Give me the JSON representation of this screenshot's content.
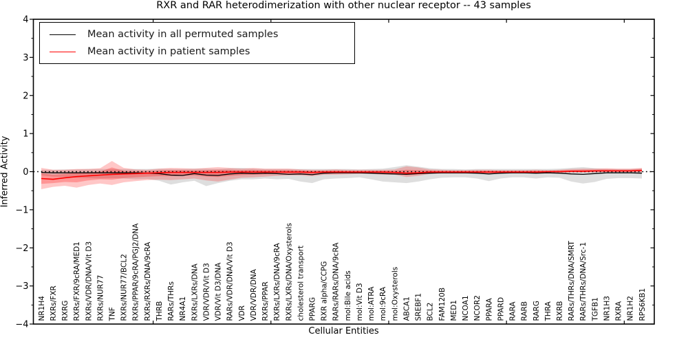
{
  "figure": {
    "background": "#ffffff"
  },
  "chart_data": {
    "type": "line",
    "title": "RXR and RAR heterodimerization with other nuclear receptor -- 43 samples",
    "xlabel": "Cellular Entities",
    "ylabel": "Inferred Activity",
    "ylim": [
      -4,
      4
    ],
    "ytick_values": [
      4,
      3,
      2,
      1,
      0,
      -1,
      -2,
      -3,
      -4
    ],
    "ytick_labels": [
      "4",
      "3",
      "2",
      "1",
      "0",
      "−1",
      "−2",
      "−3",
      "−4"
    ],
    "x_major_ticks": [
      10,
      20,
      30,
      40,
      50
    ],
    "grid": false,
    "legend_position": "upper left",
    "zero_line": {
      "value": 0,
      "style": "dotted",
      "color": "#000000"
    },
    "categories": [
      "NR1H4",
      "RXRs/FXR",
      "RXRG",
      "RXRs/FXR/9cRA/MED1",
      "RXRs/VDR/DNA/Vit D3",
      "RXRs/NUR77",
      "TNF",
      "RXRs/NUR77/BCL2",
      "RXRs/PPAR/9cRA/PGJ2/DNA",
      "RXRs/RXRs/DNA/9cRA",
      "THRB",
      "RARs/THRs",
      "NR4A1",
      "RXRs/LXRs/DNA",
      "VDR/VDR/Vit D3",
      "VDR/Vit D3/DNA",
      "RARs/VDR/DNA/Vit D3",
      "VDR",
      "VDR/VDR/DNA",
      "RXRs/PPAR",
      "RXRs/LXRs/DNA/9cRA",
      "RXRs/LXRs/DNA/Oxysterols",
      "cholesterol transport",
      "PPARG",
      "RXR alpha/CCPG",
      "RARs/RARs/DNA/9cRA",
      "mol:Bile acids",
      "mol:Vit D3",
      "mol:ATRA",
      "mol:9cRA",
      "mol:Oxysterols",
      "ABCA1",
      "SREBF1",
      "BCL2",
      "FAM120B",
      "MED1",
      "NCOA1",
      "NCOR2",
      "PPARA",
      "PPARD",
      "RARA",
      "RARB",
      "RARG",
      "THRA",
      "RXRB",
      "RARs/THRs/DNA/SMRT",
      "RARs/THRs/DNA/Src-1",
      "TGFB1",
      "NR1H3",
      "RXRA",
      "NR1H2",
      "RPS6KB1"
    ],
    "series": [
      {
        "name": "Mean activity in all permuted samples",
        "color": "#000000",
        "band_color": "rgba(0,0,0,0.13)",
        "values": [
          -0.02,
          -0.03,
          -0.03,
          -0.03,
          -0.03,
          -0.03,
          -0.03,
          -0.03,
          -0.03,
          -0.04,
          -0.05,
          -0.09,
          -0.1,
          -0.05,
          -0.09,
          -0.1,
          -0.06,
          -0.04,
          -0.05,
          -0.04,
          -0.05,
          -0.07,
          -0.06,
          -0.08,
          -0.04,
          -0.03,
          -0.03,
          -0.03,
          -0.04,
          -0.05,
          -0.06,
          -0.07,
          -0.05,
          -0.04,
          -0.03,
          -0.03,
          -0.03,
          -0.04,
          -0.06,
          -0.04,
          -0.03,
          -0.03,
          -0.04,
          -0.03,
          -0.04,
          -0.06,
          -0.07,
          -0.05,
          -0.03,
          -0.03,
          -0.03,
          -0.04
        ],
        "band_upper": [
          0.05,
          0.05,
          0.06,
          0.06,
          0.07,
          0.07,
          0.07,
          0.07,
          0.07,
          0.07,
          0.08,
          0.07,
          0.07,
          0.08,
          0.08,
          0.07,
          0.09,
          0.1,
          0.08,
          0.07,
          0.07,
          0.07,
          0.07,
          0.07,
          0.07,
          0.07,
          0.07,
          0.06,
          0.07,
          0.08,
          0.12,
          0.17,
          0.13,
          0.09,
          0.07,
          0.07,
          0.06,
          0.07,
          0.07,
          0.07,
          0.07,
          0.07,
          0.07,
          0.07,
          0.08,
          0.1,
          0.12,
          0.09,
          0.07,
          0.07,
          0.07,
          0.08
        ],
        "band_lower": [
          -0.1,
          -0.13,
          -0.14,
          -0.16,
          -0.17,
          -0.18,
          -0.17,
          -0.18,
          -0.2,
          -0.19,
          -0.24,
          -0.34,
          -0.28,
          -0.24,
          -0.38,
          -0.3,
          -0.24,
          -0.2,
          -0.2,
          -0.18,
          -0.2,
          -0.19,
          -0.26,
          -0.3,
          -0.2,
          -0.18,
          -0.17,
          -0.15,
          -0.2,
          -0.26,
          -0.28,
          -0.3,
          -0.26,
          -0.2,
          -0.16,
          -0.15,
          -0.15,
          -0.18,
          -0.25,
          -0.18,
          -0.15,
          -0.15,
          -0.18,
          -0.15,
          -0.16,
          -0.26,
          -0.31,
          -0.27,
          -0.19,
          -0.17,
          -0.17,
          -0.18
        ]
      },
      {
        "name": "Mean activity in patient samples",
        "color": "#ff0000",
        "band_color": "rgba(255,0,0,0.22)",
        "inner_band_color": "rgba(255,0,0,0.25)",
        "values": [
          -0.18,
          -0.2,
          -0.16,
          -0.13,
          -0.11,
          -0.09,
          -0.07,
          -0.06,
          -0.05,
          -0.04,
          -0.03,
          -0.02,
          -0.02,
          -0.02,
          -0.02,
          -0.02,
          -0.01,
          -0.01,
          -0.01,
          -0.01,
          -0.01,
          -0.01,
          -0.01,
          -0.02,
          -0.01,
          -0.01,
          -0.01,
          -0.01,
          -0.01,
          -0.01,
          -0.02,
          -0.04,
          -0.03,
          -0.01,
          -0.01,
          -0.01,
          -0.01,
          -0.01,
          -0.01,
          -0.01,
          -0.01,
          -0.01,
          -0.01,
          0.0,
          0.0,
          0.01,
          0.01,
          0.02,
          0.02,
          0.02,
          0.02,
          0.03
        ],
        "band_upper": [
          0.1,
          0.05,
          0.05,
          0.07,
          0.07,
          0.09,
          0.28,
          0.1,
          0.06,
          0.05,
          0.08,
          0.1,
          0.09,
          0.08,
          0.1,
          0.12,
          0.1,
          0.08,
          0.1,
          0.08,
          0.08,
          0.08,
          0.06,
          0.05,
          0.05,
          0.06,
          0.05,
          0.05,
          0.05,
          0.05,
          0.06,
          0.14,
          0.11,
          0.06,
          0.05,
          0.04,
          0.04,
          0.05,
          0.05,
          0.04,
          0.04,
          0.04,
          0.05,
          0.04,
          0.05,
          0.07,
          0.08,
          0.08,
          0.09,
          0.08,
          0.08,
          0.1
        ],
        "band_lower": [
          -0.46,
          -0.4,
          -0.37,
          -0.42,
          -0.35,
          -0.31,
          -0.35,
          -0.28,
          -0.25,
          -0.22,
          -0.21,
          -0.22,
          -0.2,
          -0.18,
          -0.23,
          -0.26,
          -0.21,
          -0.16,
          -0.15,
          -0.13,
          -0.11,
          -0.1,
          -0.1,
          -0.12,
          -0.08,
          -0.08,
          -0.07,
          -0.06,
          -0.06,
          -0.08,
          -0.08,
          -0.14,
          -0.11,
          -0.06,
          -0.05,
          -0.05,
          -0.05,
          -0.05,
          -0.06,
          -0.05,
          -0.04,
          -0.04,
          -0.05,
          -0.04,
          -0.03,
          -0.02,
          -0.02,
          -0.02,
          -0.01,
          -0.01,
          -0.01,
          -0.02
        ],
        "inner_band_upper": [
          -0.04,
          -0.08,
          -0.06,
          -0.03,
          -0.02,
          0.0,
          0.11,
          0.02,
          0.01,
          0.01,
          0.03,
          0.04,
          0.04,
          0.03,
          0.04,
          0.05,
          0.05,
          0.04,
          0.05,
          0.04,
          0.04,
          0.04,
          0.03,
          0.02,
          0.02,
          0.03,
          0.02,
          0.02,
          0.02,
          0.02,
          0.02,
          0.05,
          0.04,
          0.03,
          0.02,
          0.02,
          0.02,
          0.02,
          0.02,
          0.02,
          0.02,
          0.02,
          0.02,
          0.02,
          0.03,
          0.04,
          0.05,
          0.05,
          0.06,
          0.05,
          0.05,
          0.07
        ],
        "inner_band_lower": [
          -0.32,
          -0.3,
          -0.27,
          -0.28,
          -0.23,
          -0.2,
          -0.21,
          -0.17,
          -0.15,
          -0.13,
          -0.12,
          -0.12,
          -0.11,
          -0.1,
          -0.13,
          -0.14,
          -0.11,
          -0.09,
          -0.08,
          -0.07,
          -0.06,
          -0.06,
          -0.06,
          -0.07,
          -0.05,
          -0.05,
          -0.04,
          -0.04,
          -0.04,
          -0.05,
          -0.05,
          -0.09,
          -0.07,
          -0.04,
          -0.03,
          -0.03,
          -0.03,
          -0.03,
          -0.04,
          -0.03,
          -0.03,
          -0.03,
          -0.03,
          -0.02,
          -0.02,
          -0.01,
          -0.01,
          0.0,
          0.01,
          0.01,
          0.01,
          0.01
        ]
      }
    ]
  }
}
